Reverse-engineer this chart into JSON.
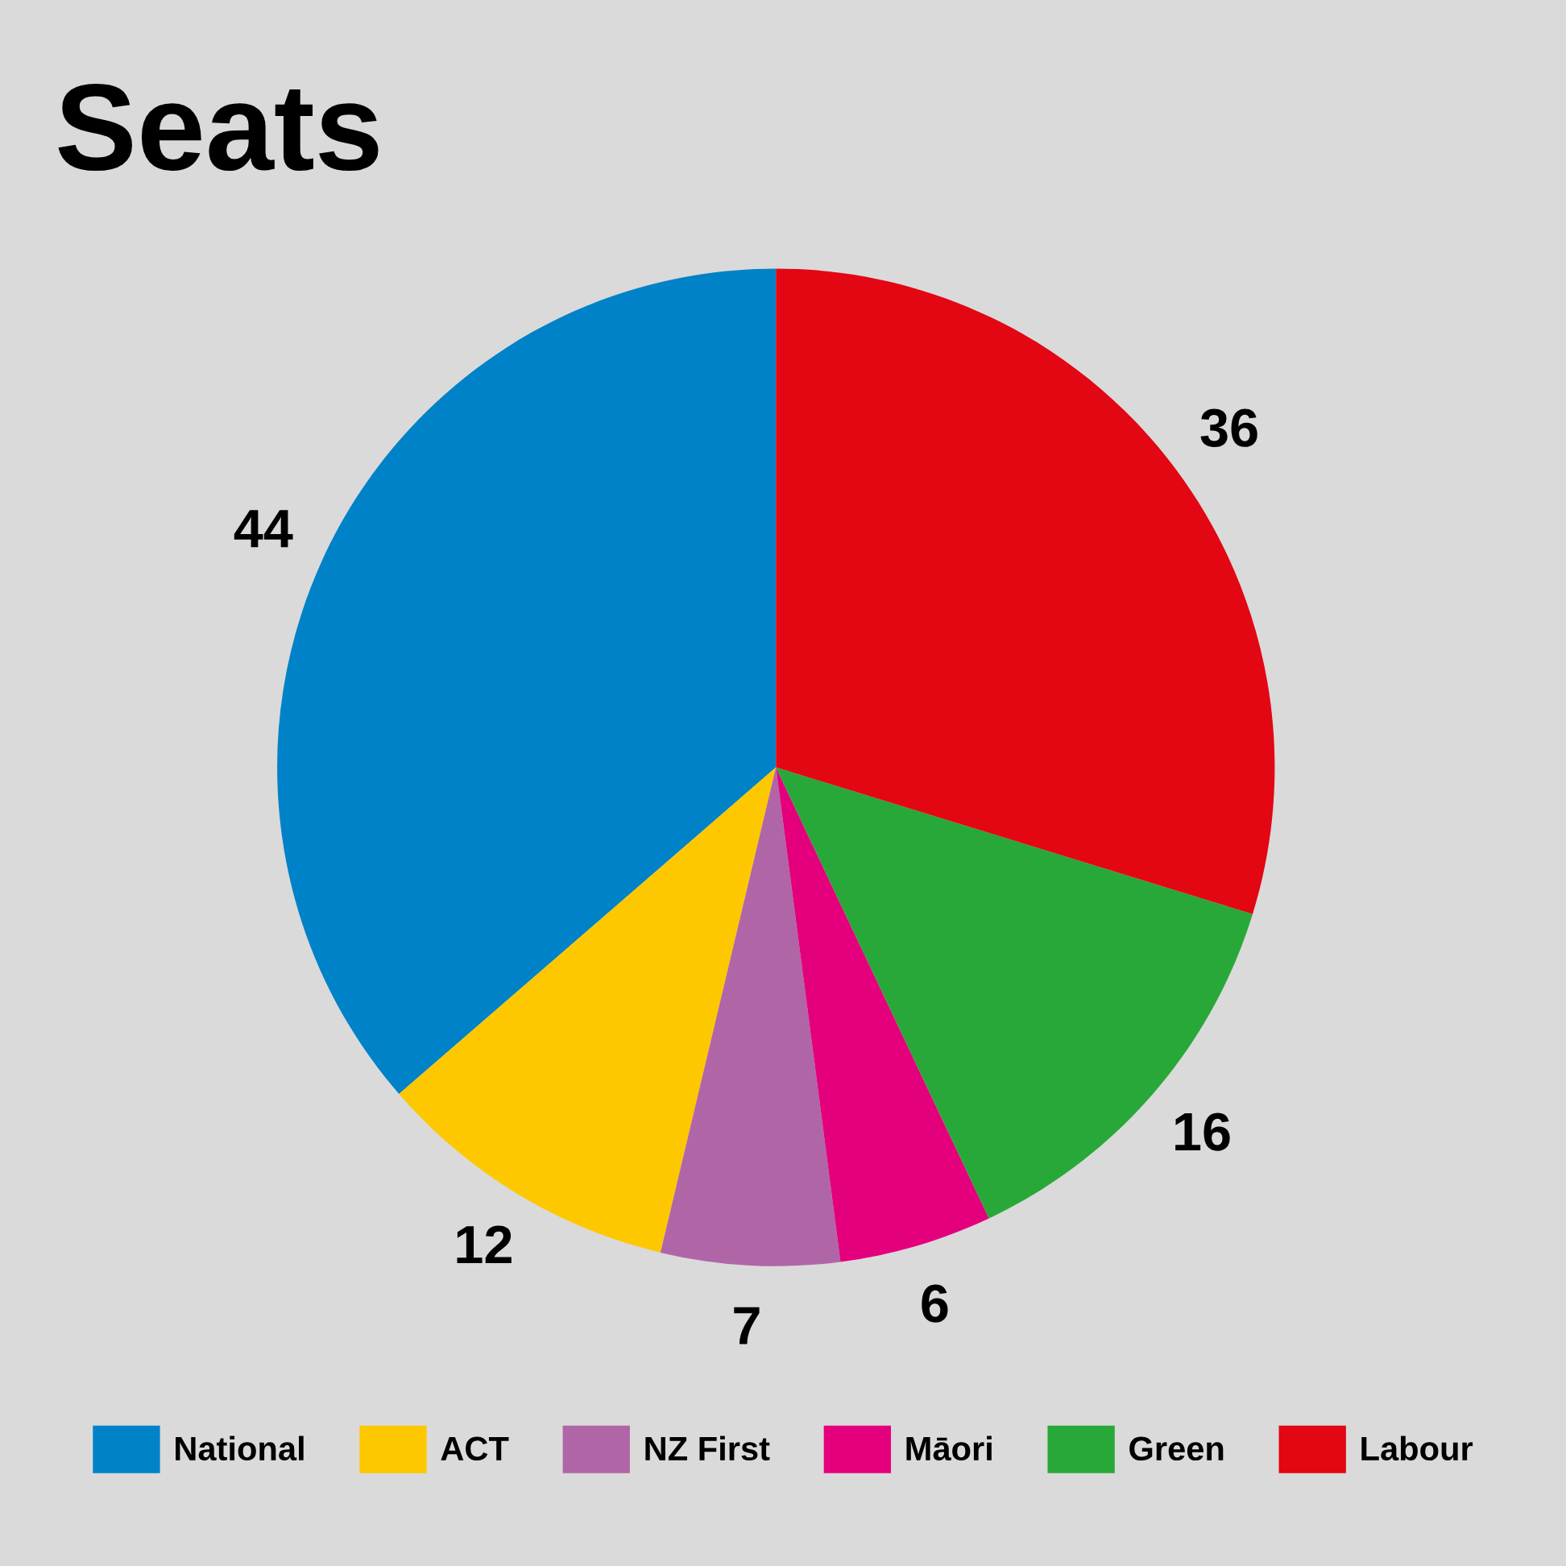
{
  "chart_data": {
    "type": "pie",
    "title": "Seats",
    "categories": [
      "National",
      "ACT",
      "NZ First",
      "Māori",
      "Green",
      "Labour"
    ],
    "values": [
      44,
      12,
      7,
      6,
      16,
      36
    ],
    "colors": [
      "#0082c8",
      "#fec800",
      "#b066a6",
      "#e4007c",
      "#28a838",
      "#e30613"
    ],
    "data_labels": true,
    "legend": "bottom"
  }
}
